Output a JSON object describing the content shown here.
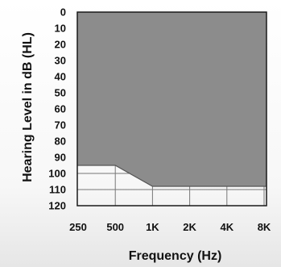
{
  "chart_data": {
    "type": "area",
    "title": "",
    "xlabel": "Frequency (Hz)",
    "ylabel": "Hearing Level in dB (HL)",
    "x_scale": "log",
    "categories": [
      "250",
      "500",
      "1K",
      "2K",
      "4K",
      "8K"
    ],
    "x_hz": [
      250,
      500,
      1000,
      2000,
      4000,
      8000
    ],
    "yticks": [
      "0",
      "10",
      "20",
      "30",
      "40",
      "50",
      "60",
      "70",
      "80",
      "90",
      "100",
      "110",
      "120"
    ],
    "ylim": [
      0,
      120
    ],
    "y_inverted": true,
    "grid": true,
    "series": [
      {
        "values": [
          95,
          95,
          108,
          108,
          108,
          108
        ]
      }
    ],
    "colors": {
      "fill": "#8c8c8c",
      "grid": "#777777",
      "border": "#1a1a1a",
      "background": "#ffffff"
    }
  }
}
